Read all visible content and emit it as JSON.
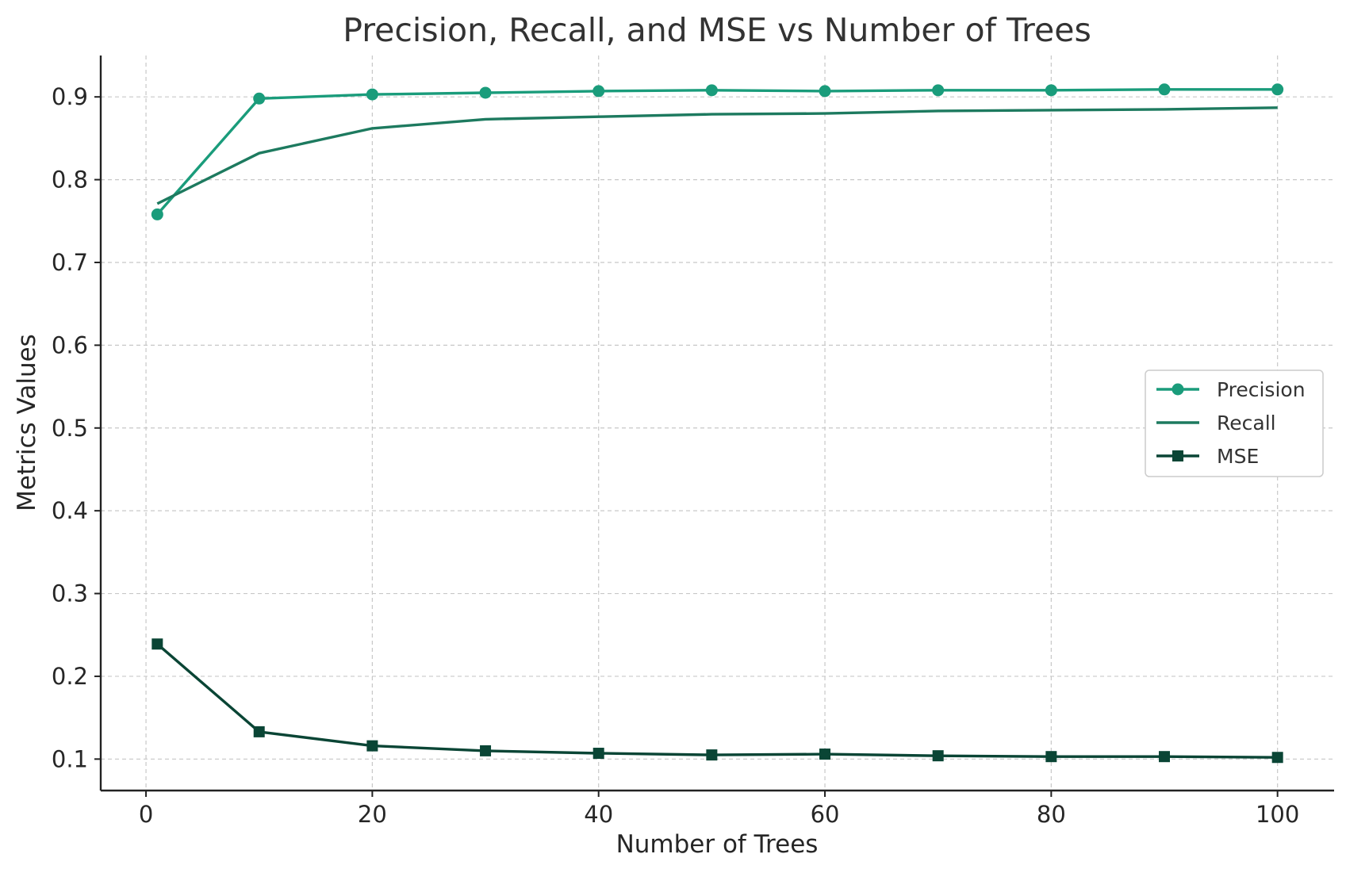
{
  "chart_data": {
    "type": "line",
    "title": "Precision, Recall, and MSE vs Number of Trees",
    "xlabel": "Number of Trees",
    "ylabel": "Metrics Values",
    "xlim": [
      -4,
      105
    ],
    "ylim": [
      0.062,
      0.95
    ],
    "xticks": [
      0,
      20,
      40,
      60,
      80,
      100
    ],
    "xtick_labels": [
      "0",
      "20",
      "40",
      "60",
      "80",
      "100"
    ],
    "yticks": [
      0.1,
      0.2,
      0.3,
      0.4,
      0.5,
      0.6,
      0.7,
      0.8,
      0.9
    ],
    "ytick_labels": [
      "0.1",
      "0.2",
      "0.3",
      "0.4",
      "0.5",
      "0.6",
      "0.7",
      "0.8",
      "0.9"
    ],
    "grid": true,
    "legend_position": "center-right",
    "x": [
      1,
      10,
      20,
      30,
      40,
      50,
      60,
      70,
      80,
      90,
      100
    ],
    "series": [
      {
        "name": "Precision",
        "values": [
          0.758,
          0.898,
          0.903,
          0.905,
          0.907,
          0.908,
          0.907,
          0.908,
          0.908,
          0.909,
          0.909
        ],
        "color": "#1a9c7b",
        "marker": "circle"
      },
      {
        "name": "Recall",
        "values": [
          0.771,
          0.832,
          0.862,
          0.873,
          0.876,
          0.879,
          0.88,
          0.883,
          0.884,
          0.885,
          0.887
        ],
        "color": "#1d7a5f",
        "marker": "none"
      },
      {
        "name": "MSE",
        "values": [
          0.239,
          0.133,
          0.116,
          0.11,
          0.107,
          0.105,
          0.106,
          0.104,
          0.103,
          0.103,
          0.102
        ],
        "color": "#0a4535",
        "marker": "square"
      }
    ]
  }
}
